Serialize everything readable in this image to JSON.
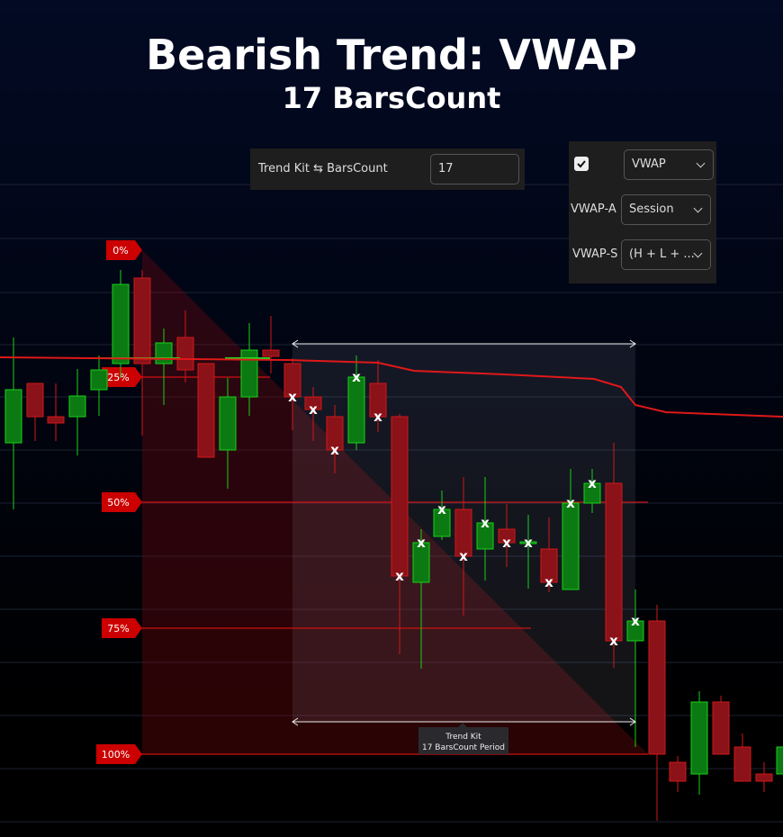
{
  "title": "Bearish Trend: VWAP",
  "subtitle": "17 BarsCount",
  "settings": {
    "label": "Trend Kit ⇆ BarsCount",
    "value": "17"
  },
  "panel": {
    "checked": true,
    "indicator": "VWAP",
    "rows": [
      {
        "label": "VWAP-A",
        "value": "Session"
      },
      {
        "label": "VWAP-S",
        "value": "(H + L + ..."
      }
    ]
  },
  "fib_levels": [
    "0%",
    "25%",
    "50%",
    "75%",
    "100%"
  ],
  "marker": "x",
  "tooltip": {
    "title": "Trend Kit",
    "text": "17 BarsCount Period"
  }
}
